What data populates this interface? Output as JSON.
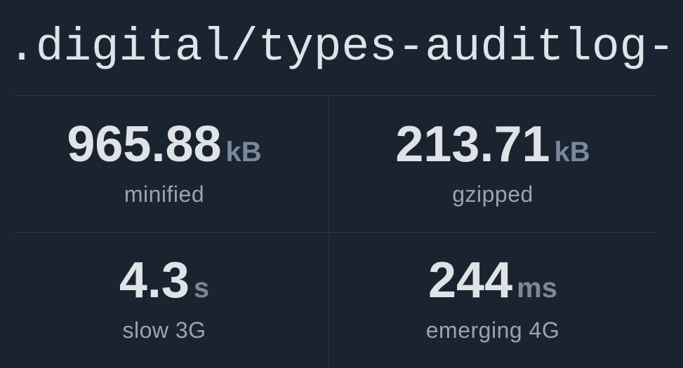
{
  "header": {
    "title": ".digital/types-auditlog-"
  },
  "stats": [
    {
      "value": "965.88",
      "unit": "kB",
      "label": "minified"
    },
    {
      "value": "213.71",
      "unit": "kB",
      "label": "gzipped"
    },
    {
      "value": "4.3",
      "unit": "s",
      "label": "slow 3G"
    },
    {
      "value": "244",
      "unit": "ms",
      "label": "emerging 4G"
    }
  ]
}
